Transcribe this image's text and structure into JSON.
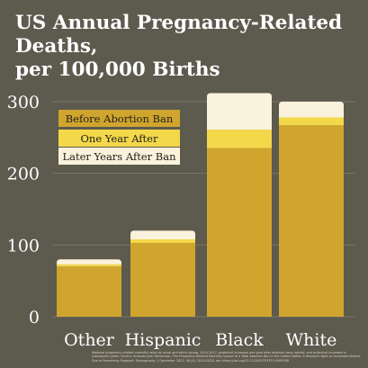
{
  "title": "US Annual Pregnancy-Related Deaths,\nper 100,000 Births",
  "footnote": "National pregnancy-related mortality rates by racial and ethnic group, 2014-2017, projected increases one year after abortion bans upheld, and projected increases in subsequent years. Source: Amanda Jean Stevenson, The Pregnancy-Related Mortality Impact of a Total Abortion Ban in the United States: A Research Note on Increased Deaths Due to Remaining Pregnant. Demography 1 December 2021; 58 (6): 2019-2028. doi: https://doi.org/10.1215/00703370-9585908",
  "colors": {
    "background": "#5d5a4e",
    "before": "#d0a52e",
    "one_year": "#f3d84a",
    "later": "#fbf2dc",
    "gridline": "#7a766a",
    "axis_text": "#ffffff"
  },
  "chart_data": {
    "type": "bar",
    "stacked": true,
    "title": "US Annual Pregnancy-Related Deaths, per 100,000 Births",
    "categories": [
      "Other",
      "Hispanic",
      "Black",
      "White"
    ],
    "series": [
      {
        "name": "Before Abortion Ban",
        "values": [
          70,
          103,
          235,
          267
        ]
      },
      {
        "name": "One Year After",
        "values": [
          3,
          5,
          26,
          11
        ]
      },
      {
        "name": "Later Years After Ban",
        "values": [
          7,
          12,
          51,
          22
        ]
      }
    ],
    "ylim": [
      0,
      300
    ],
    "yticks": [
      0,
      100,
      200,
      300
    ],
    "grid": true,
    "legend": "top-left"
  }
}
